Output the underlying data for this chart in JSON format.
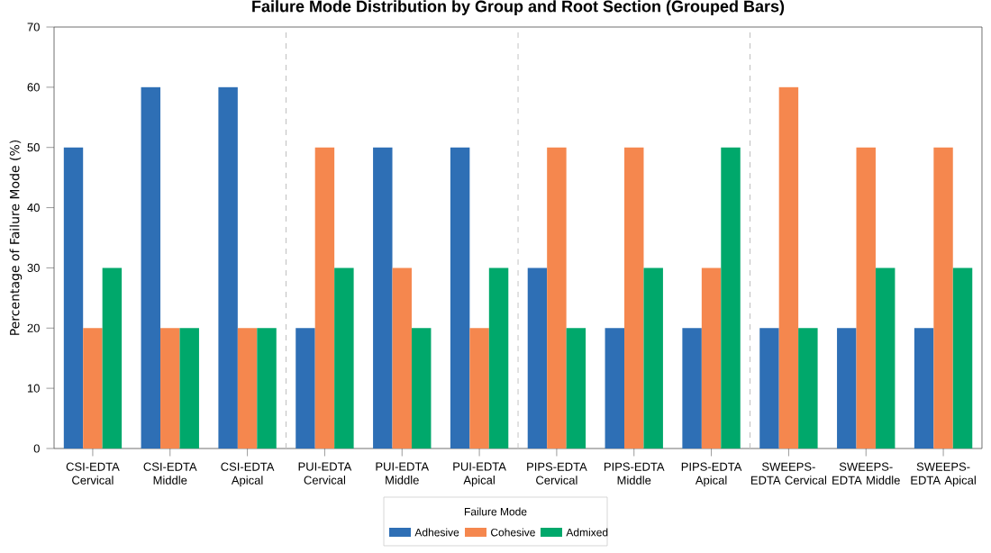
{
  "chart_data": {
    "type": "bar",
    "title": "Failure Mode Distribution by Group and Root Section (Grouped Bars)",
    "ylabel": "Percentage of Failure Mode (%)",
    "legend_title": "Failure Mode",
    "legend": "bottom",
    "grid": false,
    "categories": [
      "CSI-EDTA Cervical",
      "CSI-EDTA Middle",
      "CSI-EDTA Apical",
      "PUI-EDTA Cervical",
      "PUI-EDTA Middle",
      "PUI-EDTA Apical",
      "PIPS-EDTA Cervical",
      "PIPS-EDTA Middle",
      "PIPS-EDTA Apical",
      "SWEEPS-EDTA Cervical",
      "SWEEPS-EDTA Middle",
      "SWEEPS-EDTA Apical"
    ],
    "series": [
      {
        "name": "Adhesive",
        "color": "#2e6fb5",
        "values": [
          50,
          60,
          60,
          20,
          50,
          50,
          30,
          20,
          20,
          20,
          20,
          20
        ]
      },
      {
        "name": "Cohesive",
        "color": "#f5874e",
        "values": [
          20,
          20,
          20,
          50,
          30,
          20,
          50,
          50,
          30,
          60,
          50,
          50
        ]
      },
      {
        "name": "Admixed",
        "color": "#00a86b",
        "values": [
          30,
          20,
          20,
          30,
          20,
          30,
          20,
          30,
          50,
          20,
          30,
          30
        ]
      }
    ],
    "ylim": [
      0,
      70
    ],
    "yticks": [
      0,
      10,
      20,
      30,
      40,
      50,
      60,
      70
    ]
  }
}
